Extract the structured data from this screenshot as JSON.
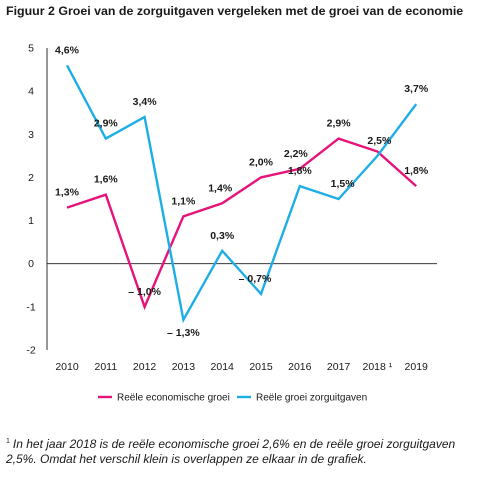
{
  "title": "Figuur 2 Groei van de zorguitgaven vergeleken met de groei van de economie",
  "footnote": {
    "marker": "1",
    "text": "In het jaar 2018 is de reële economische groei 2,6% en de reële groei zorguitgaven 2,5%. Omdat het verschil klein is overlappen ze elkaar in de grafiek."
  },
  "chart_data": {
    "type": "line",
    "x": [
      "2010",
      "2011",
      "2012",
      "2013",
      "2014",
      "2015",
      "2016",
      "2017",
      "2018",
      "2019"
    ],
    "x_tick_labels": [
      "2010",
      "2011",
      "2012",
      "2013",
      "2014",
      "2015",
      "2016",
      "2017",
      "2018 ¹",
      "2019"
    ],
    "ylim": [
      -2,
      5
    ],
    "y_ticks": [
      -2,
      -1,
      0,
      1,
      2,
      3,
      4,
      5
    ],
    "y_tick_labels": [
      "-2",
      "-1",
      "0",
      "1",
      "2",
      "3",
      "4",
      "5"
    ],
    "grid": false,
    "zero_line": true,
    "legend_position": "bottom",
    "series": [
      {
        "name": "Reële economische groei",
        "color": "#e6147a",
        "values": [
          1.3,
          1.6,
          -1.0,
          1.1,
          1.4,
          2.0,
          2.2,
          2.9,
          2.6,
          1.8
        ],
        "labels": [
          "1,3%",
          "1,6%",
          "– 1,0%",
          "1,1%",
          "1,4%",
          "2,0%",
          "2,2%",
          "2,9%",
          "",
          "1,8%"
        ]
      },
      {
        "name": "Reële groei zorguitgaven",
        "color": "#1eaee6",
        "values": [
          4.6,
          2.9,
          3.4,
          -1.3,
          0.3,
          -0.7,
          1.8,
          1.5,
          2.5,
          3.7
        ],
        "labels": [
          "4,6%",
          "2,9%",
          "3,4%",
          "– 1,3%",
          "0,3%",
          "– 0,7%",
          "1,8%",
          "1,5%",
          "2,5%",
          "3,7%"
        ]
      }
    ]
  }
}
